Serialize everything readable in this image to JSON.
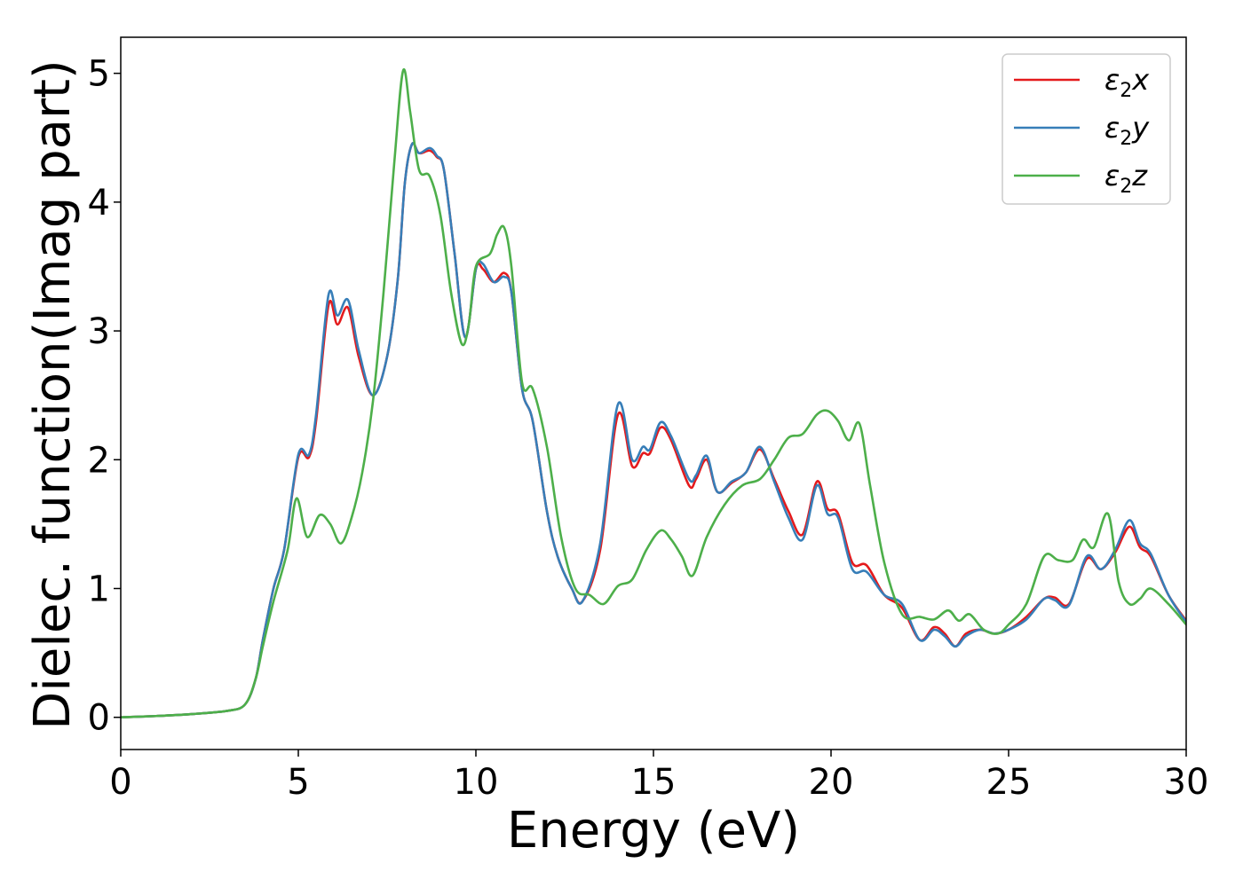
{
  "chart_data": {
    "type": "line",
    "xlabel": "Energy (eV)",
    "ylabel": "Dielec. function(Imag part)",
    "xlim": [
      0,
      30
    ],
    "ylim": [
      -0.25,
      5.28
    ],
    "xticks": [
      0,
      5,
      10,
      15,
      20,
      25,
      30
    ],
    "yticks": [
      0,
      1,
      2,
      3,
      4,
      5
    ],
    "grid": false,
    "legend_position": "top-right",
    "series": [
      {
        "name": "ε₂x",
        "legend_base": "ε",
        "legend_sub": "2",
        "legend_suffix": "x",
        "color": "#e41a1c",
        "x": [
          0,
          1,
          2,
          3,
          3.5,
          3.8,
          4.0,
          4.3,
          4.6,
          5.0,
          5.3,
          5.5,
          5.85,
          6.1,
          6.4,
          6.7,
          7.1,
          7.5,
          7.8,
          8.0,
          8.2,
          8.4,
          8.7,
          8.9,
          9.1,
          9.4,
          9.7,
          10.0,
          10.2,
          10.5,
          10.8,
          11.0,
          11.3,
          11.6,
          12.0,
          12.3,
          12.7,
          13.0,
          13.5,
          14.0,
          14.4,
          14.7,
          14.9,
          15.2,
          15.5,
          16.0,
          16.2,
          16.5,
          16.8,
          17.2,
          17.6,
          18.0,
          18.4,
          18.8,
          19.2,
          19.6,
          19.9,
          20.2,
          20.6,
          21.0,
          21.5,
          22.0,
          22.5,
          22.9,
          23.2,
          23.5,
          23.8,
          24.2,
          24.6,
          25.0,
          25.5,
          26.0,
          26.3,
          26.7,
          27.2,
          27.6,
          28.0,
          28.4,
          28.7,
          29.0,
          29.5,
          30.0
        ],
        "y": [
          0.0,
          0.01,
          0.025,
          0.05,
          0.1,
          0.3,
          0.6,
          1.0,
          1.3,
          2.02,
          2.02,
          2.3,
          3.2,
          3.05,
          3.18,
          2.8,
          2.5,
          2.8,
          3.4,
          4.15,
          4.45,
          4.38,
          4.4,
          4.35,
          4.25,
          3.6,
          2.95,
          3.48,
          3.48,
          3.38,
          3.45,
          3.3,
          2.55,
          2.3,
          1.6,
          1.25,
          1.0,
          0.9,
          1.3,
          2.35,
          1.95,
          2.05,
          2.05,
          2.25,
          2.15,
          1.8,
          1.85,
          2.0,
          1.75,
          1.82,
          1.9,
          2.08,
          1.85,
          1.6,
          1.42,
          1.83,
          1.62,
          1.58,
          1.2,
          1.18,
          0.95,
          0.85,
          0.6,
          0.7,
          0.65,
          0.55,
          0.65,
          0.68,
          0.65,
          0.68,
          0.78,
          0.92,
          0.93,
          0.88,
          1.23,
          1.15,
          1.28,
          1.48,
          1.32,
          1.25,
          0.95,
          0.75
        ]
      },
      {
        "name": "ε₂y",
        "legend_base": "ε",
        "legend_sub": "2",
        "legend_suffix": "y",
        "color": "#377eb8",
        "x": [
          0,
          1,
          2,
          3,
          3.5,
          3.8,
          4.0,
          4.3,
          4.6,
          5.0,
          5.3,
          5.5,
          5.85,
          6.1,
          6.4,
          6.7,
          7.1,
          7.5,
          7.8,
          8.0,
          8.2,
          8.4,
          8.7,
          8.9,
          9.1,
          9.4,
          9.7,
          10.0,
          10.2,
          10.5,
          10.8,
          11.0,
          11.3,
          11.6,
          12.0,
          12.3,
          12.7,
          13.0,
          13.5,
          14.0,
          14.4,
          14.7,
          14.9,
          15.2,
          15.5,
          16.0,
          16.2,
          16.5,
          16.8,
          17.2,
          17.6,
          18.0,
          18.4,
          18.8,
          19.2,
          19.6,
          19.9,
          20.2,
          20.6,
          21.0,
          21.5,
          22.0,
          22.5,
          22.9,
          23.2,
          23.5,
          23.8,
          24.2,
          24.6,
          25.0,
          25.5,
          26.0,
          26.3,
          26.7,
          27.2,
          27.6,
          28.0,
          28.4,
          28.7,
          29.0,
          29.5,
          30.0
        ],
        "y": [
          0.0,
          0.01,
          0.025,
          0.05,
          0.1,
          0.3,
          0.6,
          1.0,
          1.3,
          2.04,
          2.04,
          2.35,
          3.28,
          3.12,
          3.24,
          2.85,
          2.5,
          2.8,
          3.4,
          4.15,
          4.45,
          4.38,
          4.42,
          4.36,
          4.25,
          3.6,
          2.95,
          3.48,
          3.52,
          3.38,
          3.42,
          3.3,
          2.55,
          2.3,
          1.6,
          1.25,
          1.0,
          0.9,
          1.35,
          2.43,
          2.0,
          2.1,
          2.08,
          2.29,
          2.18,
          1.85,
          1.88,
          2.03,
          1.75,
          1.83,
          1.9,
          2.1,
          1.83,
          1.55,
          1.38,
          1.8,
          1.58,
          1.55,
          1.15,
          1.13,
          0.95,
          0.88,
          0.6,
          0.68,
          0.63,
          0.55,
          0.63,
          0.68,
          0.65,
          0.68,
          0.76,
          0.92,
          0.91,
          0.87,
          1.25,
          1.15,
          1.3,
          1.53,
          1.35,
          1.27,
          0.95,
          0.74
        ]
      },
      {
        "name": "ε₂z",
        "legend_base": "ε",
        "legend_sub": "2",
        "legend_suffix": "z",
        "color": "#4daf4a",
        "x": [
          0,
          1,
          2,
          3,
          3.5,
          3.8,
          4.0,
          4.3,
          4.7,
          4.95,
          5.25,
          5.6,
          5.9,
          6.2,
          6.5,
          6.8,
          7.1,
          7.4,
          7.7,
          7.95,
          8.15,
          8.4,
          8.7,
          9.0,
          9.3,
          9.6,
          9.8,
          10.0,
          10.4,
          10.6,
          10.8,
          11.0,
          11.3,
          11.6,
          12.0,
          12.4,
          12.8,
          13.2,
          13.6,
          14.0,
          14.4,
          14.8,
          15.2,
          15.5,
          15.8,
          16.1,
          16.5,
          17.0,
          17.5,
          18.0,
          18.4,
          18.8,
          19.2,
          19.6,
          19.9,
          20.2,
          20.5,
          20.8,
          21.1,
          21.5,
          22.0,
          22.5,
          22.9,
          23.3,
          23.6,
          23.9,
          24.3,
          24.7,
          25.0,
          25.5,
          26.0,
          26.4,
          26.8,
          27.1,
          27.4,
          27.8,
          28.1,
          28.4,
          28.7,
          29.0,
          29.5,
          30.0
        ],
        "y": [
          0.0,
          0.01,
          0.025,
          0.05,
          0.1,
          0.3,
          0.55,
          0.9,
          1.3,
          1.7,
          1.4,
          1.57,
          1.5,
          1.35,
          1.55,
          1.9,
          2.45,
          3.3,
          4.3,
          5.02,
          4.7,
          4.25,
          4.2,
          3.9,
          3.3,
          2.9,
          3.05,
          3.5,
          3.6,
          3.75,
          3.8,
          3.5,
          2.6,
          2.55,
          2.1,
          1.4,
          1.0,
          0.95,
          0.88,
          1.02,
          1.07,
          1.3,
          1.45,
          1.38,
          1.25,
          1.1,
          1.4,
          1.65,
          1.8,
          1.85,
          2.0,
          2.17,
          2.2,
          2.35,
          2.38,
          2.3,
          2.15,
          2.28,
          1.8,
          1.2,
          0.8,
          0.78,
          0.76,
          0.83,
          0.75,
          0.8,
          0.68,
          0.65,
          0.72,
          0.88,
          1.25,
          1.22,
          1.22,
          1.38,
          1.32,
          1.58,
          1.05,
          0.88,
          0.92,
          1.0,
          0.88,
          0.72
        ]
      }
    ]
  }
}
